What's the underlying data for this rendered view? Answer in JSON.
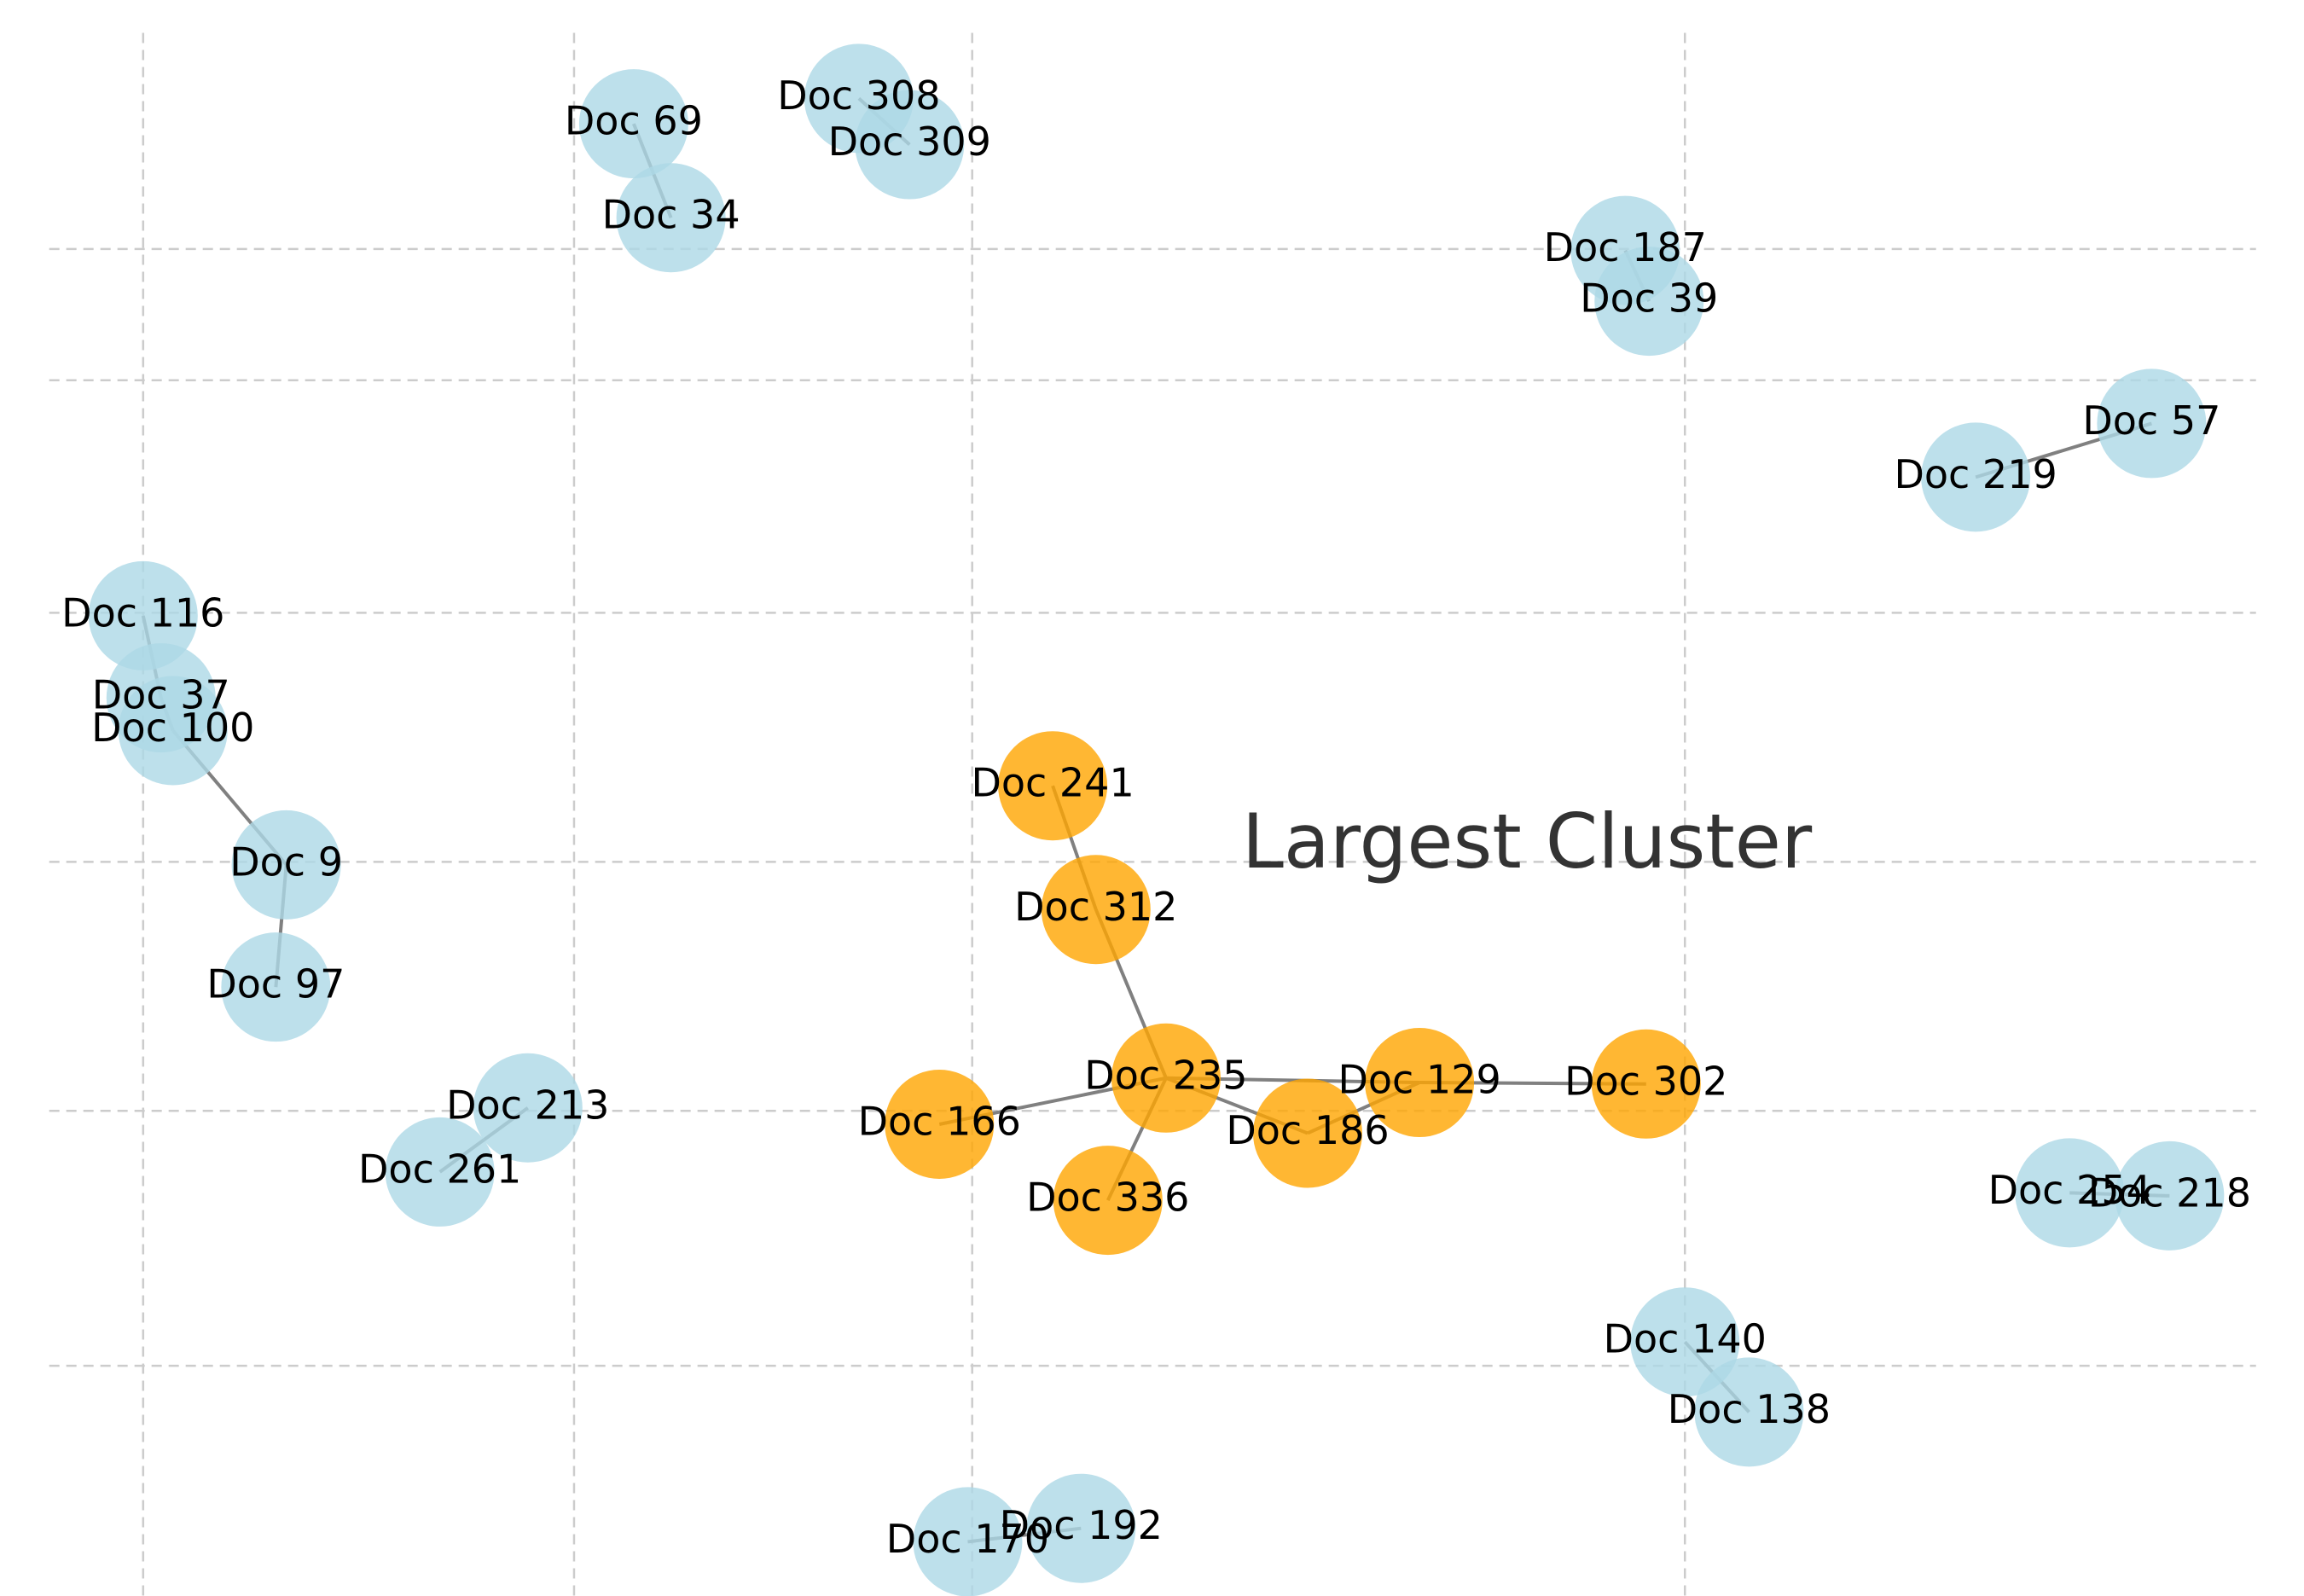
{
  "title": "Largest Cluster",
  "nodes": [
    {
      "label": "Doc 69"
    },
    {
      "label": "Doc 34"
    },
    {
      "label": "Doc 308"
    },
    {
      "label": "Doc 309"
    },
    {
      "label": "Doc 187"
    },
    {
      "label": "Doc 39"
    },
    {
      "label": "Doc 57"
    },
    {
      "label": "Doc 219"
    },
    {
      "label": "Doc 116"
    },
    {
      "label": "Doc 37"
    },
    {
      "label": "Doc 100"
    },
    {
      "label": "Doc 9"
    },
    {
      "label": "Doc 97"
    },
    {
      "label": "Doc 213"
    },
    {
      "label": "Doc 261"
    },
    {
      "label": "Doc 254"
    },
    {
      "label": "Doc 218"
    },
    {
      "label": "Doc 140"
    },
    {
      "label": "Doc 138"
    },
    {
      "label": "Doc 170"
    },
    {
      "label": "Doc 192"
    },
    {
      "label": "Doc 241"
    },
    {
      "label": "Doc 312"
    },
    {
      "label": "Doc 235"
    },
    {
      "label": "Doc 166"
    },
    {
      "label": "Doc 336"
    },
    {
      "label": "Doc 186"
    },
    {
      "label": "Doc 129"
    },
    {
      "label": "Doc 302"
    }
  ],
  "edges": [
    [
      0,
      1
    ],
    [
      2,
      3
    ],
    [
      4,
      5
    ],
    [
      6,
      7
    ],
    [
      8,
      9
    ],
    [
      9,
      10
    ],
    [
      10,
      11
    ],
    [
      11,
      12
    ],
    [
      13,
      14
    ],
    [
      15,
      16
    ],
    [
      17,
      18
    ],
    [
      19,
      20
    ],
    [
      21,
      22
    ],
    [
      22,
      23
    ],
    [
      23,
      24
    ],
    [
      23,
      25
    ],
    [
      23,
      26
    ],
    [
      23,
      27
    ],
    [
      26,
      27
    ],
    [
      27,
      28
    ]
  ]
}
